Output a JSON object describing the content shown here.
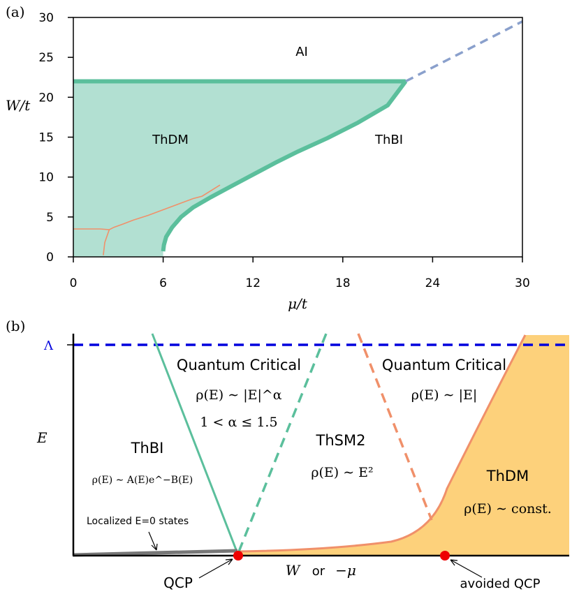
{
  "panel_a": {
    "label": "(a)",
    "chart_data": {
      "type": "area",
      "title": "",
      "xlabel": "μ/t",
      "ylabel": "W/t",
      "xlim": [
        0,
        30
      ],
      "ylim": [
        0,
        30
      ],
      "xticks": [
        "0",
        "6",
        "12",
        "18",
        "24",
        "30"
      ],
      "yticks": [
        "0",
        "5",
        "10",
        "15",
        "20",
        "25",
        "30"
      ],
      "regions": [
        {
          "name": "AI",
          "label": "AI",
          "x": 15.3,
          "y": 25.5
        },
        {
          "name": "ThDM",
          "label": "ThDM",
          "x": 6.5,
          "y": 14.7
        },
        {
          "name": "ThBI",
          "label": "ThBI",
          "x": 21,
          "y": 14.7
        }
      ],
      "colors": {
        "fill": "#b2e0d2",
        "boundary": "#5bbf9c",
        "dashed": "#8aa0cc",
        "orange": "#f0906a"
      },
      "series": [
        {
          "name": "ThDM upper boundary",
          "style": "solid",
          "x": [
            0,
            22.2
          ],
          "y": [
            22,
            22
          ]
        },
        {
          "name": "ThDM/ThBI boundary",
          "style": "solid",
          "x": [
            6.0,
            6.05,
            6.2,
            6.6,
            7.2,
            8.0,
            9.2,
            10.5,
            12.0,
            13.5,
            15.0,
            17.0,
            19.0,
            21.0,
            22.2
          ],
          "y": [
            0.7,
            1.5,
            2.5,
            3.7,
            5.0,
            6.2,
            7.5,
            8.8,
            10.3,
            11.8,
            13.2,
            14.9,
            16.8,
            19.0,
            22.0
          ]
        },
        {
          "name": "AI boundary extension",
          "style": "dashed",
          "x": [
            22.2,
            30
          ],
          "y": [
            22,
            29.5
          ]
        },
        {
          "name": "thin line A",
          "style": "thin",
          "x": [
            0,
            1.8,
            2.4
          ],
          "y": [
            3.5,
            3.5,
            3.4
          ]
        },
        {
          "name": "thin line B",
          "style": "thin",
          "x": [
            2.0,
            2.1,
            2.4,
            2.7,
            3.3,
            4.0,
            5.0,
            6.0,
            7.0,
            8.0,
            8.6,
            9.8
          ],
          "y": [
            0.2,
            1.8,
            3.4,
            3.7,
            4.1,
            4.6,
            5.2,
            5.9,
            6.6,
            7.3,
            7.6,
            9.0
          ]
        }
      ]
    }
  },
  "panel_b": {
    "label": "(b)",
    "chart_data": {
      "type": "diagram",
      "title": "",
      "xlabel_parts": [
        "W",
        "or",
        "−μ"
      ],
      "ylabel": "E",
      "cutoff_label": "Λ",
      "colors": {
        "fill": "#fdd17b",
        "teal": "#5bbf9c",
        "orange": "#f0906a",
        "cutoff": "#0000dd",
        "localized": "#777777",
        "qcp": "#ee0000"
      },
      "regions": [
        {
          "name": "ThBI-left",
          "title": "ThBI",
          "formula": "ρ(E) ∼ A(E)e^−B(E)"
        },
        {
          "name": "qc-left",
          "title": "Quantum Critical",
          "formula": "ρ(E) ∼ |E|^α",
          "extra": "1 < α ≤ 1.5"
        },
        {
          "name": "thsm2",
          "title": "ThSM2",
          "formula": "ρ(E) ∼ E²"
        },
        {
          "name": "qc-right",
          "title": "Quantum Critical",
          "formula": "ρ(E) ∼ |E|"
        },
        {
          "name": "thdm-right",
          "title": "ThDM",
          "formula": "ρ(E) ∼ const."
        }
      ],
      "annotations": {
        "localized": "Localized E=0 states",
        "qcp": "QCP",
        "avoided": "avoided QCP"
      }
    }
  }
}
